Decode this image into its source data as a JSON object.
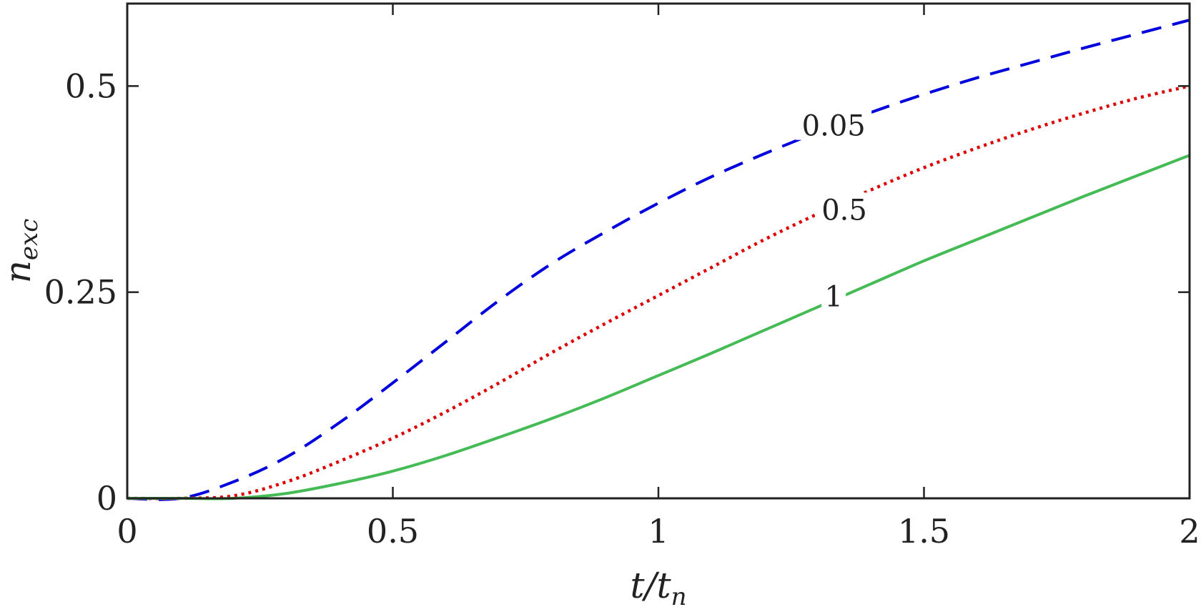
{
  "chart_data": {
    "type": "line",
    "xlabel_main": "t/t",
    "xlabel_sub": "n",
    "ylabel_main": "n",
    "ylabel_sub": "exc",
    "xlim": [
      0,
      2
    ],
    "ylim": [
      0,
      0.6
    ],
    "xticks": [
      0,
      0.5,
      1,
      1.5,
      2
    ],
    "xtick_labels": [
      "0",
      "0.5",
      "1",
      "1.5",
      "2"
    ],
    "yticks": [
      0,
      0.25,
      0.5
    ],
    "ytick_labels": [
      "0",
      "0.25",
      "0.5"
    ],
    "grid": false,
    "series": [
      {
        "label": "0.05",
        "color": "#0000dd",
        "style": "dashed",
        "label_at": [
          1.33,
          0.452
        ],
        "x": [
          0,
          0.1,
          0.2,
          0.3,
          0.4,
          0.5,
          0.6,
          0.7,
          0.8,
          0.9,
          1.0,
          1.1,
          1.2,
          1.3,
          1.4,
          1.5,
          1.6,
          1.7,
          1.8,
          1.9,
          2.0
        ],
        "y": [
          0,
          0.0,
          0.02,
          0.05,
          0.092,
          0.14,
          0.19,
          0.24,
          0.285,
          0.323,
          0.358,
          0.39,
          0.418,
          0.444,
          0.468,
          0.49,
          0.51,
          0.528,
          0.546,
          0.563,
          0.58
        ]
      },
      {
        "label": "0.5",
        "color": "#dd0000",
        "style": "dotted",
        "label_at": [
          1.35,
          0.35
        ],
        "x": [
          0,
          0.1,
          0.2,
          0.3,
          0.4,
          0.5,
          0.6,
          0.7,
          0.8,
          0.9,
          1.0,
          1.1,
          1.2,
          1.3,
          1.4,
          1.5,
          1.6,
          1.7,
          1.8,
          1.9,
          2.0
        ],
        "y": [
          0,
          0.0,
          0.003,
          0.02,
          0.045,
          0.073,
          0.105,
          0.14,
          0.177,
          0.212,
          0.246,
          0.28,
          0.314,
          0.345,
          0.374,
          0.401,
          0.425,
          0.447,
          0.467,
          0.485,
          0.5
        ]
      },
      {
        "label": "1",
        "color": "#44bb55",
        "style": "solid",
        "label_at": [
          1.33,
          0.245
        ],
        "x": [
          0,
          0.1,
          0.2,
          0.3,
          0.4,
          0.5,
          0.6,
          0.7,
          0.8,
          0.9,
          1.0,
          1.1,
          1.2,
          1.3,
          1.4,
          1.5,
          1.6,
          1.7,
          1.8,
          1.9,
          2.0
        ],
        "y": [
          0,
          0.0,
          0.0,
          0.006,
          0.018,
          0.033,
          0.052,
          0.074,
          0.097,
          0.122,
          0.149,
          0.176,
          0.204,
          0.232,
          0.26,
          0.288,
          0.314,
          0.34,
          0.366,
          0.391,
          0.416
        ]
      }
    ]
  }
}
